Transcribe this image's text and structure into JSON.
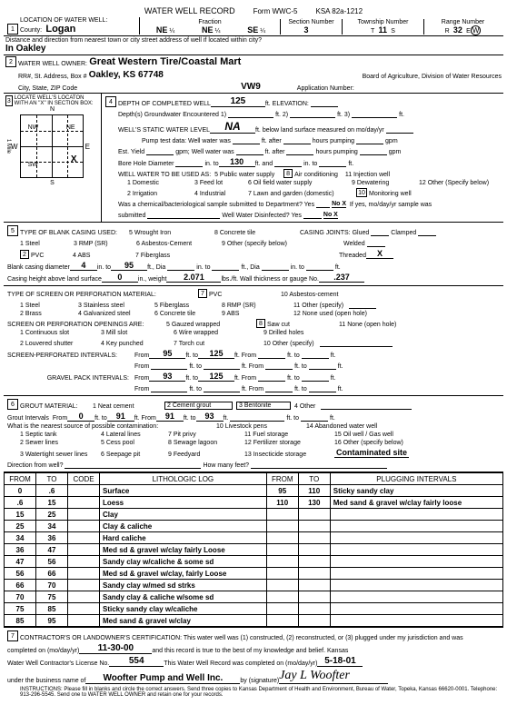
{
  "form": {
    "title": "WATER WELL RECORD",
    "form_no": "Form WWC-5",
    "ksa": "KSA 82a-1212"
  },
  "s1": {
    "label": "LOCATION OF WATER WELL:",
    "county_lbl": "County:",
    "county": "Logan",
    "fraction_lbl": "Fraction",
    "f1": "NE",
    "f1s": "¼",
    "f2": "NE",
    "f2s": "¼",
    "f3": "SE",
    "f3s": "¼",
    "section_lbl": "Section Number",
    "section": "3",
    "township_lbl": "Township Number",
    "township": "11",
    "township_dir": "S",
    "range_lbl": "Range Number",
    "range": "32",
    "range_dir1": "E",
    "range_dir2": "W",
    "distance_lbl": "Distance and direction from nearest town or city street address of well if located within city?",
    "distance": "In Oakley"
  },
  "s2": {
    "label": "WATER WELL OWNER:",
    "owner": "Great Western Tire/Coastal Mart",
    "addr_lbl": "RR#, St. Address, Box #",
    "addr": "Oakley, KS  67748",
    "city_lbl": "City, State, ZIP Code",
    "board_lbl": "Board of Agriculture, Division of Water Resources",
    "vw9": "VW9",
    "app_lbl": "Application Number:"
  },
  "s3": {
    "label": "LOCATE WELL'S LOCATON WITH AN \"X\" IN SECTION BOX:",
    "n": "N",
    "s": "S",
    "w": "W",
    "e": "E",
    "nw": "NW",
    "ne": "NE",
    "sw": "SW",
    "se": "SE",
    "x": "X",
    "mile": "1 Mile"
  },
  "s4": {
    "depth_lbl": "DEPTH OF COMPLETED WELL",
    "depth": "125",
    "depth_unit": "ft. ELEVATION:",
    "gw_lbl": "Depth(s) Groundwater Encountered",
    "gw1": "1)",
    "gw2": "ft. 2)",
    "gw3": "ft. 3)",
    "gw_end": "ft.",
    "static_lbl": "WELL'S STATIC WATER LEVEL",
    "static": "NA",
    "static_unit": "ft. below land surface measured on mo/day/yr",
    "pump_lbl": "Pump test data:  Well water was",
    "pump_unit": "ft. after",
    "pump_hrs": "hours pumping",
    "pump_gpm": "gpm",
    "est_lbl": "Est. Yield",
    "est_gpm": "gpm;  Well water was",
    "bore_lbl": "Bore Hole Diameter",
    "bore_in": "in. to",
    "bore_v": "130",
    "bore_ft": "ft. and",
    "bore_in2": "in. to",
    "bore_ft2": "ft.",
    "use_lbl": "WELL WATER TO BE USED AS:",
    "u5": "5  Public water supply",
    "u8n": "8",
    "u8": "Air conditioning",
    "u11": "11 Injection well",
    "u1": "1   Domestic",
    "u3": "3 Feed lot",
    "u6": "6  Oil field water supply",
    "u9": "9  Dewatering",
    "u12": "12  Other (Specify below)",
    "u2": "2   Irrigation",
    "u4": "4  Industrial",
    "u7": "7  Lawn and garden (domestic)",
    "u10n": "10",
    "u10": "Monitoring well",
    "chem_lbl": "Was a chemical/bacteriological sample submitted to Department?  Yes",
    "chem_nox": "No X",
    "chem_if": "If yes, mo/day/yr sample was",
    "chem_sub": "submitted",
    "disinf_lbl": "Well Water Disinfected?  Yes",
    "disinf_nox": "No X"
  },
  "s5": {
    "label": "TYPE OF BLANK CASING USED:",
    "c1": "1  Steel",
    "c3": "3  RMP (SR)",
    "c5": "5  Wrought Iron",
    "c8": "8  Concrete tile",
    "joints_lbl": "CASING JOINTS:",
    "j_glued": "Glued",
    "j_clamped": "Clamped",
    "c2n": "2",
    "c2": "PVC",
    "c4": "4  ABS",
    "c6": "6  Asbestos-Cement",
    "c9": "9  Other (specify below)",
    "j_welded": "Welded",
    "c7": "7  Fiberglass",
    "j_threaded": "Threaded",
    "j_threaded_x": "X",
    "dia_lbl": "Blank casing diameter",
    "dia": "4",
    "dia_in": "in. to",
    "dia_to": "95",
    "dia_ft": "ft., Dia",
    "dia_in2": "in. to",
    "dia_ft2": "ft., Dia",
    "dia_in3": "in. to",
    "dia_ft3": "ft.",
    "height_lbl": "Casing height above land surface",
    "height": "0",
    "height_in": "in., weight",
    "weight": "2.071",
    "weight_u": "lbs./ft.  Wall thickness or gauge No.",
    "gauge": ".237"
  },
  "screen": {
    "label": "TYPE OF SCREEN OR PERFORATION MATERIAL:",
    "s7n": "7",
    "s7": "PVC",
    "s10": "10  Asbestos-cement",
    "s1": "1  Steel",
    "s3": "3  Stainless steel",
    "s5": "5  Fiberglass",
    "s8": "8  RMP (SR)",
    "s11": "11  Other (specify)",
    "s2": "2  Brass",
    "s4": "4  Galvanized steel",
    "s6": "6  Concrete tile",
    "s9": "9  ABS",
    "s12": "12  None used (open hole)",
    "open_lbl": "SCREEN OR PERFORATION OPENINGS ARE:",
    "o5": "5  Gauzed wrapped",
    "o8n": "8",
    "o8": "Saw cut",
    "o11": "11  None (open hole)",
    "o1": "1  Continuous slot",
    "o3": "3  Mill slot",
    "o6": "6  Wire wrapped",
    "o9": "9  Drilled holes",
    "o2": "2  Louvered shutter",
    "o4": "4  Key punched",
    "o7": "7  Torch cut",
    "o10": "10  Other (specify)",
    "sp_lbl": "SCREEN-PERFORATED INTERVALS:",
    "sp_from": "From",
    "sp_f1": "95",
    "sp_to": "ft. to",
    "sp_t1": "125",
    "sp_ft": "ft.  From",
    "sp_ft2": "ft. to",
    "sp_ft3": "ft.",
    "gp_lbl": "GRAVEL PACK INTERVALS:",
    "gp_f1": "93",
    "gp_t1": "125"
  },
  "s6": {
    "label": "GROUT MATERIAL:",
    "g1": "1  Neat cement",
    "g2": "2  Cement grout",
    "g3": "3 Bentonite",
    "g4": "4  Other",
    "gi_lbl": "Grout Intervals",
    "gi_from": "From",
    "gi_f1": "0",
    "gi_to": "ft. to",
    "gi_t1": "91",
    "gi_f2": "91",
    "gi_t2": "93",
    "near_lbl": "What is the nearest source of possible contamination:",
    "n10": "10  Livestock pens",
    "n14": "14  Abandoned water well",
    "n1": "1  Septic tank",
    "n4": "4  Lateral lines",
    "n7": "7  Pit privy",
    "n11": "11  Fuel storage",
    "n15": "15  Oil well / Gas well",
    "n2": "2  Sewer lines",
    "n5": "5  Cess pool",
    "n8": "8  Sewage lagoon",
    "n12": "12  Fertilizer storage",
    "n16": "16  Other (specify below)",
    "n3": "3  Watertight sewer lines",
    "n6": "6  Seepage pit",
    "n9": "9  Feedyard",
    "n13": "13  Insecticide storage",
    "contam": "Contaminated site",
    "dir_lbl": "Direction from well?",
    "feet_lbl": "How many feet?"
  },
  "log": {
    "h_from": "FROM",
    "h_to": "TO",
    "h_code": "CODE",
    "h_lith": "LITHOLOGIC LOG",
    "h_from2": "FROM",
    "h_to2": "TO",
    "h_plug": "PLUGGING INTERVALS",
    "rows": [
      {
        "f": "0",
        "t": ".6",
        "lith": "Surface",
        "f2": "95",
        "t2": "110",
        "plug": "Sticky sandy clay"
      },
      {
        "f": ".6",
        "t": "15",
        "lith": "Loess",
        "f2": "110",
        "t2": "130",
        "plug": "Med sand & gravel w/clay fairly loose"
      },
      {
        "f": "15",
        "t": "25",
        "lith": "Clay",
        "f2": "",
        "t2": "",
        "plug": ""
      },
      {
        "f": "25",
        "t": "34",
        "lith": "Clay & caliche",
        "f2": "",
        "t2": "",
        "plug": ""
      },
      {
        "f": "34",
        "t": "36",
        "lith": "Hard caliche",
        "f2": "",
        "t2": "",
        "plug": ""
      },
      {
        "f": "36",
        "t": "47",
        "lith": "Med sd & gravel w/clay fairly Loose",
        "f2": "",
        "t2": "",
        "plug": ""
      },
      {
        "f": "47",
        "t": "56",
        "lith": "Sandy clay w/caliche & some sd",
        "f2": "",
        "t2": "",
        "plug": ""
      },
      {
        "f": "56",
        "t": "66",
        "lith": "Med sd & gravel w/clay, fairly Loose",
        "f2": "",
        "t2": "",
        "plug": ""
      },
      {
        "f": "66",
        "t": "70",
        "lith": "Sandy clay w/med sd strks",
        "f2": "",
        "t2": "",
        "plug": ""
      },
      {
        "f": "70",
        "t": "75",
        "lith": "Sandy clay & caliche w/some sd",
        "f2": "",
        "t2": "",
        "plug": ""
      },
      {
        "f": "75",
        "t": "85",
        "lith": "Sticky sandy clay w/caliche",
        "f2": "",
        "t2": "",
        "plug": ""
      },
      {
        "f": "85",
        "t": "95",
        "lith": "Med sand & gravel w/clay",
        "f2": "",
        "t2": "",
        "plug": ""
      }
    ]
  },
  "s7": {
    "cert_lbl": "CONTRACTOR'S OR LANDOWNER'S CERTIFICATION:  This water well was (1) constructed, (2) reconstructed, or (3) plugged under my jurisdiction and was",
    "comp_lbl": "completed on (mo/day/yr)",
    "comp_date": "11-30-00",
    "true_lbl": "and this record is true to the best of my knowledge and belief.  Kansas",
    "lic_lbl": "Water Well Contractor's License No.",
    "lic": "554",
    "rec_lbl": "This Water Well Record was completed on (mo/day/yr)",
    "rec_date": "5-18-01",
    "bus_lbl": "under the business name of",
    "bus": "Woofter Pump and Well Inc.",
    "sig_lbl": "by (signature)",
    "sig": "Jay L Woofter",
    "instr": "INSTRUCTIONS:  Please fill in blanks and circle the correct answers.  Send three copies to Kansas Department of Health and Environment, Bureau of Water, Topeka, Kansas 66620-0001.  Telephone:  913-296-5545.  Send one to WATER WELL OWNER and retain one for your records."
  }
}
